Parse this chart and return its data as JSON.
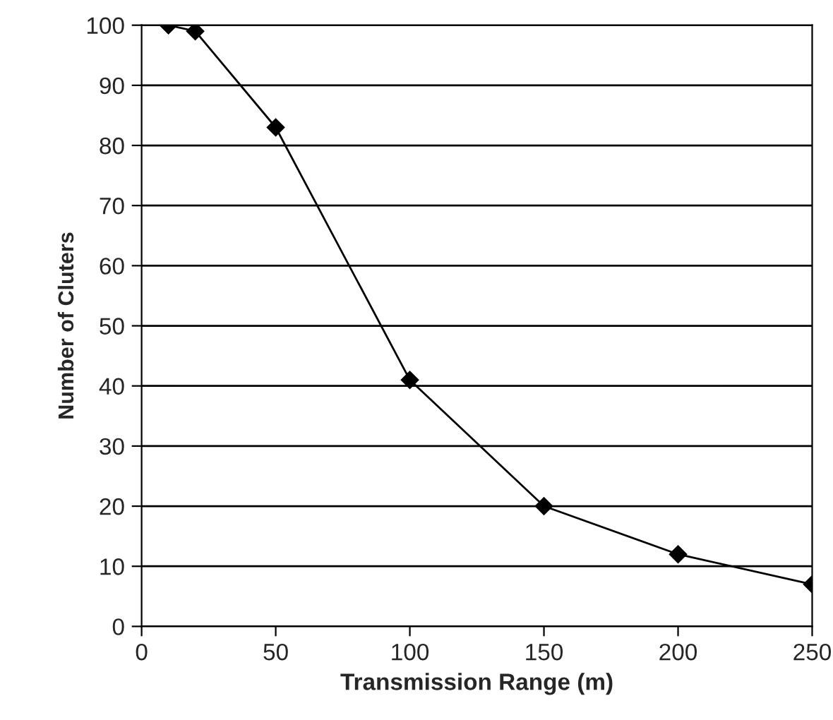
{
  "chart_data": {
    "type": "line",
    "xlabel": "Transmission Range (m)",
    "ylabel": "Number of Cluters",
    "x": [
      10,
      20,
      50,
      100,
      150,
      200,
      250
    ],
    "series": [
      {
        "color": "#000000",
        "values": [
          100,
          99,
          83,
          41,
          20,
          12,
          7
        ]
      }
    ],
    "xlim": [
      0,
      250
    ],
    "xticks": [
      0,
      50,
      100,
      150,
      200,
      250
    ],
    "ylim": [
      0,
      100
    ],
    "yticks": [
      0,
      10,
      20,
      30,
      40,
      50,
      60,
      70,
      80,
      90,
      100
    ],
    "grid": "y",
    "marker": "diamond",
    "line_style": "solid",
    "legend": false
  }
}
